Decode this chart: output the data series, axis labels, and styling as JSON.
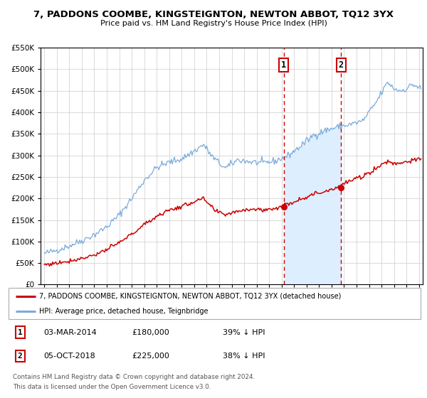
{
  "title": "7, PADDONS COOMBE, KINGSTEIGNTON, NEWTON ABBOT, TQ12 3YX",
  "subtitle": "Price paid vs. HM Land Registry's House Price Index (HPI)",
  "legend_line1": "7, PADDONS COOMBE, KINGSTEIGNTON, NEWTON ABBOT, TQ12 3YX (detached house)",
  "legend_line2": "HPI: Average price, detached house, Teignbridge",
  "transaction1_date": "03-MAR-2014",
  "transaction1_price": "£180,000",
  "transaction1_hpi": "39% ↓ HPI",
  "transaction2_date": "05-OCT-2018",
  "transaction2_price": "£225,000",
  "transaction2_hpi": "38% ↓ HPI",
  "footnote1": "Contains HM Land Registry data © Crown copyright and database right 2024.",
  "footnote2": "This data is licensed under the Open Government Licence v3.0.",
  "red_color": "#cc0000",
  "blue_color": "#7aabdb",
  "blue_fill": "#ddeeff",
  "marker1_date_num": 2014.17,
  "marker1_value_red": 180000,
  "marker2_date_num": 2018.75,
  "marker2_value_red": 225000,
  "ylim": [
    0,
    550000
  ],
  "xlim_start": 1994.7,
  "xlim_end": 2025.3
}
